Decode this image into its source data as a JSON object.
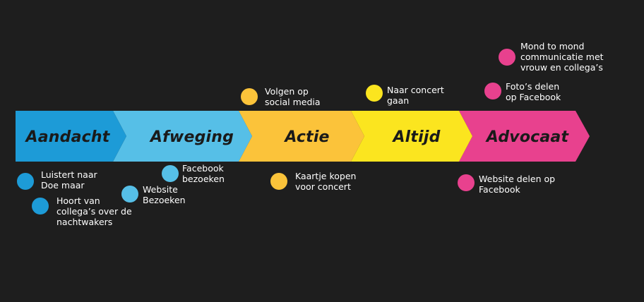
{
  "colors": {
    "background": "#1e1e1e",
    "aandacht": "#1d9bd7",
    "afweging": "#56bfe7",
    "actie": "#fbc33a",
    "altijd": "#fbe51f",
    "advocaat": "#e8418e",
    "text": "#ffffff"
  },
  "stages": [
    {
      "id": "aandacht",
      "label": "Aandacht"
    },
    {
      "id": "afweging",
      "label": "Afweging"
    },
    {
      "id": "actie",
      "label": "Actie"
    },
    {
      "id": "altijd",
      "label": "Altijd"
    },
    {
      "id": "advocaat",
      "label": "Advocaat"
    }
  ],
  "notes": {
    "luistert": "Luistert naar\nDoe maar",
    "hoort": "Hoort van\ncollega’s over de\nnachtwakers",
    "facebook_bezoeken": "Facebook\nbezoeken",
    "website_bezoeken": "Website\nBezoeken",
    "volgen": "Volgen op\nsocial media",
    "kaartje": "Kaartje kopen\nvoor concert",
    "naar_concert": "Naar concert\ngaan",
    "mond": "Mond to mond\ncommunicatie met\nvrouw en collega’s",
    "fotos": "Foto’s delen\nop Facebook",
    "website_delen": "Website delen op\nFacebook"
  }
}
